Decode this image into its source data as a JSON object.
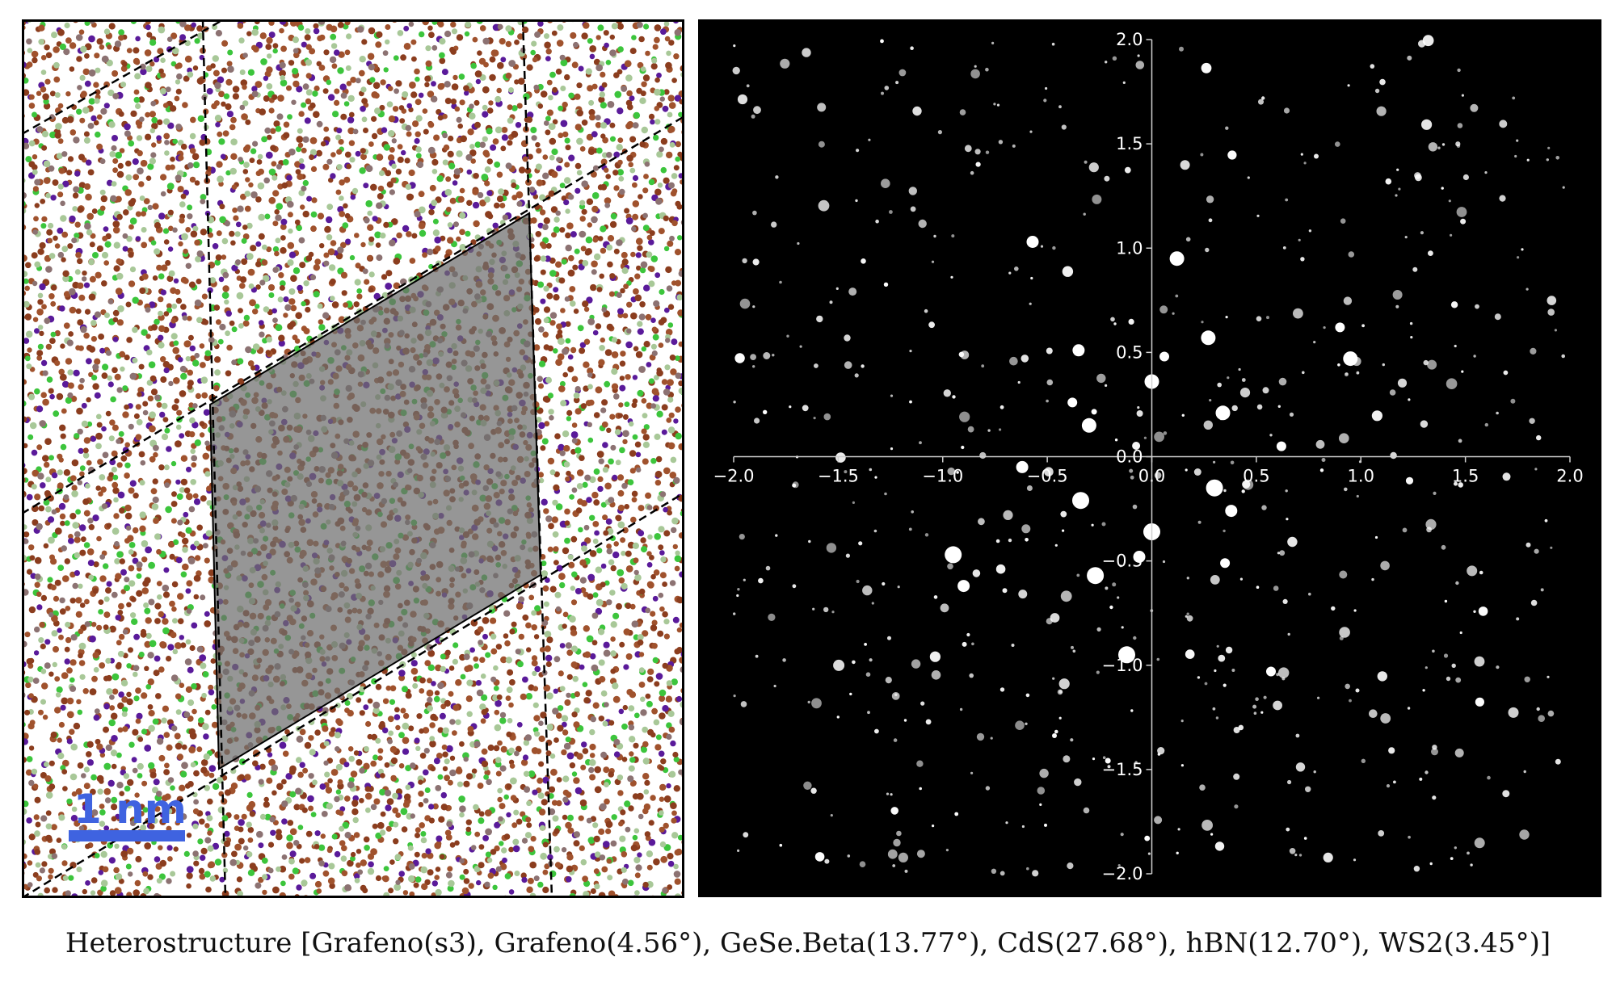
{
  "caption": "Heterostructure [Grafeno(s3), Grafeno(4.56°), GeSe.Beta(13.77°), CdS(27.68°), hBN(12.70°), WS2(3.45°)]",
  "real_space": {
    "scale_bar": {
      "label": "1 nm",
      "color": "#3f63e0"
    },
    "atom_colors": [
      "#8b3d1e",
      "#a0522d",
      "#5a1a9a",
      "#3cc53c",
      "#a8c898",
      "#8c7272"
    ],
    "cell_fill": "#6e6e6e",
    "lattice_line_color": "#000000",
    "frame_color": "#000000"
  },
  "diffraction": {
    "background": "#000000",
    "axis_color": "#cfcfcf",
    "spot_color": "#ffffff",
    "xlim": [
      -2.0,
      2.0
    ],
    "ylim": [
      -2.0,
      2.0
    ],
    "x_ticks": [
      -2.0,
      -1.5,
      -1.0,
      -0.5,
      0.0,
      0.5,
      1.0,
      1.5,
      2.0
    ],
    "y_ticks": [
      -2.0,
      -1.5,
      -1.0,
      -0.5,
      0.0,
      0.5,
      1.0,
      1.5,
      2.0
    ],
    "x_tick_labels": [
      "−2.0",
      "−1.5",
      "−1.0",
      "−0.5",
      "0.0",
      "0.5",
      "1.0",
      "1.5",
      "2.0"
    ],
    "y_tick_labels": [
      "−2.0",
      "−1.5",
      "−1.0",
      "−0.5",
      "0.0",
      "0.5",
      "1.0",
      "1.5",
      "2.0"
    ],
    "bright_spots": [
      [
        0.62,
        0.05
      ],
      [
        -0.62,
        -0.05
      ],
      [
        0.27,
        0.57
      ],
      [
        -0.27,
        -0.57
      ],
      [
        0.35,
        -0.51
      ],
      [
        -0.35,
        0.51
      ],
      [
        -0.3,
        0.15
      ],
      [
        0.3,
        -0.15
      ],
      [
        -0.38,
        0.26
      ],
      [
        0.38,
        -0.26
      ],
      [
        0.34,
        0.21
      ],
      [
        -0.34,
        -0.21
      ],
      [
        0.06,
        0.48
      ],
      [
        -0.06,
        -0.48
      ],
      [
        0.0,
        0.36
      ],
      [
        0.0,
        -0.36
      ],
      [
        0.9,
        0.62
      ],
      [
        -0.9,
        -0.62
      ],
      [
        0.95,
        0.47
      ],
      [
        -0.95,
        -0.47
      ],
      [
        0.57,
        -1.03
      ],
      [
        -0.57,
        1.03
      ],
      [
        0.12,
        0.95
      ],
      [
        -0.12,
        -0.95
      ]
    ]
  }
}
